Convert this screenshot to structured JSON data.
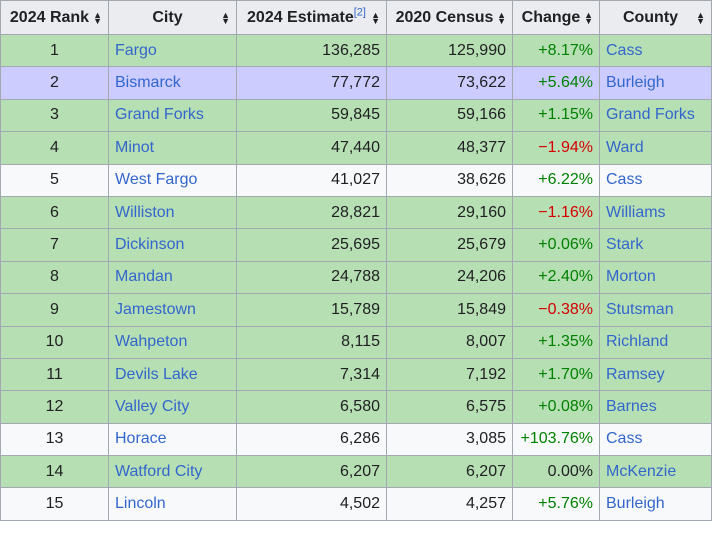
{
  "headers": {
    "rank": "2024 Rank",
    "city": "City",
    "estimate": "2024 Estimate",
    "estimate_ref": "[2]",
    "census": "2020 Census",
    "change": "Change",
    "county": "County"
  },
  "rows": [
    {
      "rank": "1",
      "city": "Fargo",
      "estimate": "136,285",
      "census": "125,990",
      "change": "+8.17%",
      "county": "Cass",
      "sign": "pos",
      "bg": "green"
    },
    {
      "rank": "2",
      "city": "Bismarck",
      "estimate": "77,772",
      "census": "73,622",
      "change": "+5.64%",
      "county": "Burleigh",
      "sign": "pos",
      "bg": "purple"
    },
    {
      "rank": "3",
      "city": "Grand Forks",
      "estimate": "59,845",
      "census": "59,166",
      "change": "+1.15%",
      "county": "Grand Forks",
      "sign": "pos",
      "bg": "green"
    },
    {
      "rank": "4",
      "city": "Minot",
      "estimate": "47,440",
      "census": "48,377",
      "change": "−1.94%",
      "county": "Ward",
      "sign": "neg",
      "bg": "green"
    },
    {
      "rank": "5",
      "city": "West Fargo",
      "estimate": "41,027",
      "census": "38,626",
      "change": "+6.22%",
      "county": "Cass",
      "sign": "pos",
      "bg": "white"
    },
    {
      "rank": "6",
      "city": "Williston",
      "estimate": "28,821",
      "census": "29,160",
      "change": "−1.16%",
      "county": "Williams",
      "sign": "neg",
      "bg": "green"
    },
    {
      "rank": "7",
      "city": "Dickinson",
      "estimate": "25,695",
      "census": "25,679",
      "change": "+0.06%",
      "county": "Stark",
      "sign": "pos",
      "bg": "green"
    },
    {
      "rank": "8",
      "city": "Mandan",
      "estimate": "24,788",
      "census": "24,206",
      "change": "+2.40%",
      "county": "Morton",
      "sign": "pos",
      "bg": "green"
    },
    {
      "rank": "9",
      "city": "Jamestown",
      "estimate": "15,789",
      "census": "15,849",
      "change": "−0.38%",
      "county": "Stutsman",
      "sign": "neg",
      "bg": "green"
    },
    {
      "rank": "10",
      "city": "Wahpeton",
      "estimate": "8,115",
      "census": "8,007",
      "change": "+1.35%",
      "county": "Richland",
      "sign": "pos",
      "bg": "green"
    },
    {
      "rank": "11",
      "city": "Devils Lake",
      "estimate": "7,314",
      "census": "7,192",
      "change": "+1.70%",
      "county": "Ramsey",
      "sign": "pos",
      "bg": "green"
    },
    {
      "rank": "12",
      "city": "Valley City",
      "estimate": "6,580",
      "census": "6,575",
      "change": "+0.08%",
      "county": "Barnes",
      "sign": "pos",
      "bg": "green"
    },
    {
      "rank": "13",
      "city": "Horace",
      "estimate": "6,286",
      "census": "3,085",
      "change": "+103.76%",
      "county": "Cass",
      "sign": "pos",
      "bg": "white"
    },
    {
      "rank": "14",
      "city": "Watford City",
      "estimate": "6,207",
      "census": "6,207",
      "change": "0.00%",
      "county": "McKenzie",
      "sign": "zero",
      "bg": "green"
    },
    {
      "rank": "15",
      "city": "Lincoln",
      "estimate": "4,502",
      "census": "4,257",
      "change": "+5.76%",
      "county": "Burleigh",
      "sign": "pos",
      "bg": "white"
    }
  ],
  "icons": {
    "sort": "sort-icon"
  },
  "colors": {
    "link": "#3366cc",
    "positive": "#008000",
    "negative": "#d40000",
    "row_green": "#b7dfb4",
    "row_purple": "#ccccff",
    "header_bg": "#eaecf0",
    "border": "#a2a9b1"
  }
}
